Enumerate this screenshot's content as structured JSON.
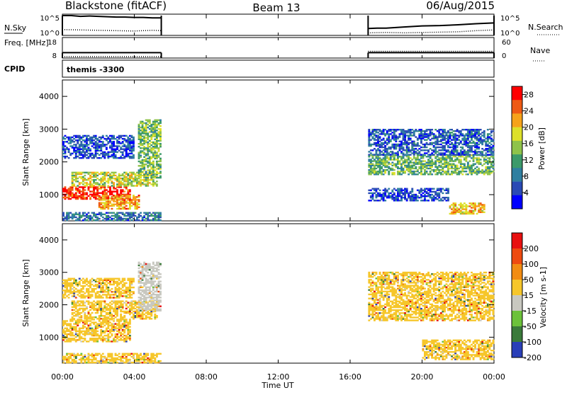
{
  "header": {
    "station": "Blackstone (fitACF)",
    "beam": "Beam 13",
    "date": "06/Aug/2015"
  },
  "colors": {
    "background": "#ffffff",
    "frame": "#000000",
    "ground_scatter": "#c8c8c0"
  },
  "chart_data": [
    {
      "type": "line",
      "panel": "noise",
      "left_label": "N.Sky",
      "left_ticks": [
        "10^5",
        "10^0"
      ],
      "right_label": "N.Search",
      "right_ticks": [
        "10^5",
        "10^0"
      ],
      "scale": "log",
      "series": [
        {
          "name": "N.Sky",
          "style": "solid",
          "x": [
            0.0,
            0.5,
            1.0,
            1.5,
            2.0,
            2.5,
            3.0,
            3.5,
            4.0,
            4.5,
            5.0,
            5.5,
            17.0,
            17.5,
            18.0,
            19.0,
            20.0,
            21.0,
            22.0,
            23.0,
            24.0
          ],
          "values": [
            5.0,
            5.0,
            4.8,
            4.9,
            4.8,
            4.7,
            4.6,
            4.6,
            4.5,
            4.5,
            4.4,
            4.4,
            1.5,
            1.6,
            1.6,
            1.9,
            2.2,
            2.3,
            2.5,
            2.8,
            3.0
          ]
        },
        {
          "name": "N.Search",
          "style": "dotted",
          "x": [
            0.0,
            1.0,
            2.0,
            3.0,
            4.0,
            5.0,
            5.5,
            17.0,
            18.0,
            19.0,
            20.0,
            21.0,
            22.0,
            23.0,
            24.0
          ],
          "values": [
            1.2,
            1.1,
            1.0,
            0.9,
            0.8,
            1.0,
            0.9,
            0.3,
            0.4,
            0.3,
            0.4,
            0.5,
            0.6,
            0.9,
            1.1
          ]
        }
      ]
    },
    {
      "type": "line",
      "panel": "frequency",
      "left_label": "Freq. [MHz]",
      "left_ticks": [
        "18",
        "8"
      ],
      "right_label": "Nave",
      "right_ticks": [
        "60",
        "0"
      ],
      "series": [
        {
          "name": "Freq.",
          "style": "solid",
          "x": [
            0.0,
            5.5,
            17.0,
            24.0
          ],
          "values": [
            11.3,
            11.3,
            11.3,
            11.3
          ]
        },
        {
          "name": "Nave",
          "style": "dotted",
          "x": [
            0.0,
            5.5,
            17.0,
            24.0
          ],
          "values": [
            0,
            0,
            18,
            18
          ]
        }
      ]
    },
    {
      "type": "table",
      "panel": "cpid",
      "label": "CPID",
      "value": "themis -3300"
    },
    {
      "type": "heatmap",
      "panel": "power",
      "ylabel": "Slant Range [km]",
      "yticks": [
        "1000",
        "2000",
        "3000",
        "4000"
      ],
      "ylim": [
        200,
        4500
      ],
      "xlim": [
        0,
        24
      ],
      "colorbar_label": "Power [dB]",
      "colorbar_ticks": [
        "4",
        "8",
        "12",
        "16",
        "20",
        "24",
        "28"
      ],
      "colorbar_range": [
        0,
        30
      ],
      "colorbar_colors": [
        "#0000ff",
        "#2a4ab5",
        "#2f7fa0",
        "#3c9a6a",
        "#8fc34a",
        "#dde02a",
        "#f6a21a",
        "#ee5a14",
        "#ff0000"
      ],
      "regions": [
        {
          "t": [
            0.0,
            3.8
          ],
          "r": [
            850,
            1250
          ],
          "value": 27
        },
        {
          "t": [
            0.5,
            5.2
          ],
          "r": [
            1250,
            1700
          ],
          "value": 17
        },
        {
          "t": [
            0.0,
            4.0
          ],
          "r": [
            2100,
            2800
          ],
          "value": 5
        },
        {
          "t": [
            2.0,
            4.3
          ],
          "r": [
            550,
            1000
          ],
          "value": 22
        },
        {
          "t": [
            4.2,
            5.4
          ],
          "r": [
            1500,
            3300
          ],
          "value": 14
        },
        {
          "t": [
            0.0,
            5.4
          ],
          "r": [
            200,
            450
          ],
          "value": 8
        },
        {
          "t": [
            17.0,
            24.0
          ],
          "r": [
            1600,
            2200
          ],
          "value": 13
        },
        {
          "t": [
            17.0,
            24.0
          ],
          "r": [
            2200,
            3000
          ],
          "value": 6
        },
        {
          "t": [
            21.5,
            23.5
          ],
          "r": [
            400,
            750
          ],
          "value": 21
        },
        {
          "t": [
            17.0,
            21.5
          ],
          "r": [
            800,
            1200
          ],
          "value": 5
        }
      ]
    },
    {
      "type": "heatmap",
      "panel": "velocity",
      "ylabel": "Slant Range [km]",
      "yticks": [
        "1000",
        "2000",
        "3000",
        "4000"
      ],
      "ylim": [
        200,
        4500
      ],
      "xlim": [
        0,
        24
      ],
      "colorbar_label": "Velocity [m s-1]",
      "colorbar_ticks": [
        "200",
        "100",
        "50",
        "15",
        "-15",
        "-50",
        "-100",
        "-200"
      ],
      "colorbar_range": [
        -250,
        250
      ],
      "colorbar_colors": [
        "#2a3fb8",
        "#3a7a3a",
        "#6cc23a",
        "#c8c8c0",
        "#f6c62a",
        "#f28c12",
        "#ee4a10",
        "#e81010"
      ],
      "regions": [
        {
          "t": [
            0.0,
            3.8
          ],
          "r": [
            850,
            1550
          ],
          "value": 0
        },
        {
          "t": [
            0.5,
            5.2
          ],
          "r": [
            1550,
            2100
          ],
          "value": 0
        },
        {
          "t": [
            0.0,
            4.0
          ],
          "r": [
            2200,
            2800
          ],
          "value": 0
        },
        {
          "t": [
            4.2,
            5.4
          ],
          "r": [
            1800,
            3300
          ],
          "value": -30
        },
        {
          "t": [
            0.0,
            5.4
          ],
          "r": [
            200,
            500
          ],
          "value": 60
        },
        {
          "t": [
            17.0,
            24.0
          ],
          "r": [
            1500,
            2300
          ],
          "value": 0
        },
        {
          "t": [
            17.0,
            24.0
          ],
          "r": [
            2300,
            3000
          ],
          "value": 0
        },
        {
          "t": [
            20.0,
            24.0
          ],
          "r": [
            300,
            900
          ],
          "value": 0
        }
      ]
    }
  ],
  "xaxis": {
    "ticks": [
      "00:00",
      "04:00",
      "08:00",
      "12:00",
      "16:00",
      "20:00",
      "00:00"
    ],
    "label": "Time UT"
  }
}
